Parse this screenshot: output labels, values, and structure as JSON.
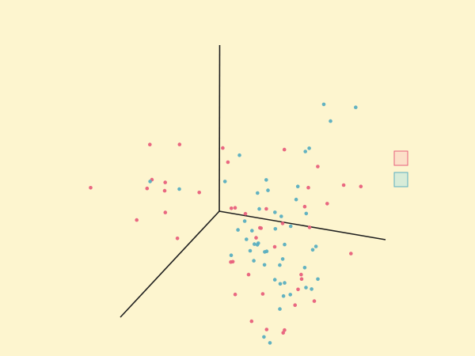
{
  "colors": {
    "background": "#fdf5cf",
    "axis": "#1f1f1f",
    "series_a": "#e8607c",
    "series_b": "#5aaec0",
    "legend_a_fill": "#fce0c8",
    "legend_a_stroke": "#e8607c",
    "legend_b_fill": "#d8ecd8",
    "legend_b_stroke": "#5aaec0"
  },
  "chart_data": {
    "type": "scatter",
    "projection": "3d",
    "title": "",
    "xlabel": "",
    "ylabel": "",
    "zlabel": "",
    "grid": false,
    "legend": "right",
    "series": [
      {
        "color": "#e8607c",
        "points": [
          [
            0.62,
            0.13,
            0.82
          ],
          [
            0.67,
            0.42,
            0.88
          ],
          [
            0.78,
            0.03,
            0.64
          ],
          [
            0.5,
            -0.12,
            0.7
          ],
          [
            0.58,
            -0.06,
            0.55
          ],
          [
            0.72,
            0.1,
            0.6
          ],
          [
            0.88,
            -0.25,
            0.66
          ],
          [
            0.4,
            0.29,
            0.6
          ],
          [
            0.3,
            0.57,
            0.66
          ],
          [
            0.74,
            0.32,
            0.64
          ],
          [
            0.68,
            0.5,
            0.54
          ],
          [
            0.66,
            0.55,
            0.5
          ],
          [
            0.36,
            0.75,
            0.5
          ],
          [
            0.62,
            0.62,
            0.4
          ],
          [
            0.33,
            0.71,
            0.36
          ],
          [
            0.22,
            0.78,
            0.32
          ],
          [
            0.25,
            1.0,
            0.48
          ],
          [
            0.02,
            0.76,
            0.3
          ],
          [
            0.08,
            0.64,
            0.43
          ],
          [
            0.5,
            0.37,
            0.4
          ],
          [
            0.7,
            -0.08,
            0.38
          ],
          [
            0.68,
            0.08,
            0.44
          ],
          [
            0.53,
            -0.01,
            0.51
          ],
          [
            0.55,
            0.61,
            0.47
          ],
          [
            0.6,
            0.9,
            0.44
          ],
          [
            0.86,
            0.26,
            0.43
          ],
          [
            0.2,
            0.5,
            0.14
          ],
          [
            0.43,
            0.5,
            0.26
          ],
          [
            0.77,
            0.54,
            0.28
          ],
          [
            0.88,
            0.7,
            0.3
          ],
          [
            0.64,
            0.45,
            0.18
          ],
          [
            0.3,
            0.4,
            0.1
          ],
          [
            0.28,
            0.5,
            0.05
          ],
          [
            0.83,
            0.59,
            0.13
          ],
          [
            0.35,
            1.0,
            0.14
          ],
          [
            0.55,
            0.82,
            0.11
          ],
          [
            0.68,
            0.9,
            0.18
          ],
          [
            0.72,
            0.69,
            0.08
          ],
          [
            0.78,
            0.92,
            0.09
          ],
          [
            0.85,
            0.7,
            0.0
          ],
          [
            0.95,
            0.85,
            0.04
          ],
          [
            0.97,
            0.97,
            0.07
          ],
          [
            0.85,
            0.98,
            0.24
          ],
          [
            0.72,
            1.0,
            0.09
          ],
          [
            0.9,
            0.92,
            0.0
          ]
        ]
      },
      {
        "color": "#5aaec0",
        "points": [
          [
            0.22,
            0.8,
            0.82
          ],
          [
            0.34,
            0.72,
            0.7
          ],
          [
            0.12,
            0.7,
            0.84
          ],
          [
            0.1,
            0.88,
            0.84
          ],
          [
            0.45,
            0.55,
            0.57
          ],
          [
            0.58,
            0.68,
            0.48
          ],
          [
            0.66,
            0.73,
            0.44
          ],
          [
            0.7,
            0.69,
            0.32
          ],
          [
            0.5,
            0.77,
            0.6
          ],
          [
            0.6,
            0.88,
            0.52
          ],
          [
            0.55,
            0.7,
            0.44
          ],
          [
            0.52,
            0.55,
            0.44
          ],
          [
            0.5,
            0.76,
            0.52
          ],
          [
            0.48,
            0.32,
            0.54
          ],
          [
            0.42,
            0.48,
            0.46
          ],
          [
            0.3,
            0.3,
            0.58
          ],
          [
            0.2,
            0.66,
            0.62
          ],
          [
            0.8,
            0.06,
            0.7
          ],
          [
            0.74,
            0.2,
            0.64
          ],
          [
            0.6,
            0.65,
            0.62
          ],
          [
            0.65,
            0.55,
            0.34
          ],
          [
            0.72,
            0.5,
            0.28
          ],
          [
            0.76,
            0.66,
            0.3
          ],
          [
            0.8,
            0.84,
            0.33
          ],
          [
            0.83,
            0.88,
            0.17
          ],
          [
            0.9,
            0.9,
            0.14
          ],
          [
            0.57,
            0.55,
            0.26
          ],
          [
            0.53,
            0.55,
            0.24
          ],
          [
            0.45,
            0.38,
            0.24
          ],
          [
            0.32,
            0.62,
            0.22
          ],
          [
            0.4,
            0.8,
            0.16
          ],
          [
            0.55,
            0.92,
            0.1
          ],
          [
            0.3,
            0.76,
            0.11
          ],
          [
            0.68,
            0.96,
            0.13
          ],
          [
            0.77,
            0.98,
            0.2
          ],
          [
            0.96,
            0.84,
            0.0
          ],
          [
            1.0,
            0.9,
            0.0
          ],
          [
            0.18,
            0.26,
            0.1
          ],
          [
            0.36,
            0.4,
            0.06
          ],
          [
            0.4,
            0.51,
            0.02
          ],
          [
            0.48,
            0.62,
            0.0
          ],
          [
            0.56,
            0.7,
            0.04
          ],
          [
            0.6,
            0.75,
            0.08
          ],
          [
            0.66,
            0.82,
            0.06
          ],
          [
            0.38,
            0.74,
            0.03
          ],
          [
            0.26,
            0.44,
            0.0
          ],
          [
            0.22,
            0.36,
            0.0
          ],
          [
            0.18,
            0.5,
            0.0
          ],
          [
            0.14,
            0.28,
            0.02
          ],
          [
            0.3,
            0.56,
            0.0
          ]
        ]
      }
    ],
    "legend_entries": [
      "",
      ""
    ]
  }
}
